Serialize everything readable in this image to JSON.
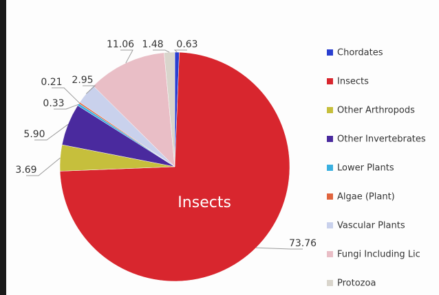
{
  "chart_data": {
    "type": "pie",
    "categories": [
      "Chordates",
      "Insects",
      "Other Arthropods",
      "Other Invertebrates",
      "Lower Plants",
      "Algae (Plant)",
      "Vascular Plants",
      "Fungi Including Lic",
      "Protozoa"
    ],
    "values": [
      0.63,
      73.76,
      3.69,
      5.9,
      0.33,
      0.21,
      2.95,
      11.06,
      1.48
    ],
    "value_labels": [
      "0.63",
      "73.76",
      "3.69",
      "5.90",
      "0.33",
      "0.21",
      "2.95",
      "11.06",
      "1.48"
    ],
    "colors": [
      "#2a3fd0",
      "#d8262e",
      "#c6bf3c",
      "#4a2a9e",
      "#3ab0e0",
      "#e0643e",
      "#c9d1ec",
      "#e9bec6",
      "#d9d5cc"
    ],
    "legend": "right"
  }
}
